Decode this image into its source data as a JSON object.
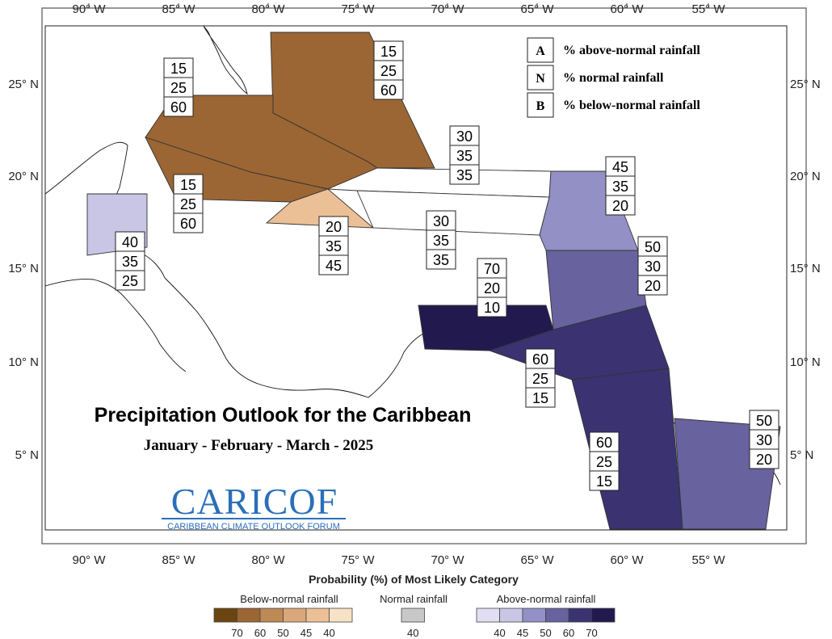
{
  "map": {
    "lon_ticks": [
      "90° W",
      "85° W",
      "80° W",
      "75° W",
      "70° W",
      "65° W",
      "60° W",
      "55° W"
    ],
    "lat_ticks": [
      "25° N",
      "20° N",
      "15° N",
      "10° N",
      "5° N"
    ]
  },
  "title": "Precipitation Outlook for the Caribbean",
  "subtitle": "January - February - March - 2025",
  "logo": {
    "name": "CARICOF",
    "tagline": "CARIBBEAN CLIMATE OUTLOOK FORUM"
  },
  "key": [
    {
      "letter": "A",
      "text": "% above-normal rainfall"
    },
    {
      "letter": "N",
      "text": "% normal rainfall"
    },
    {
      "letter": "B",
      "text": "% below-normal rainfall"
    }
  ],
  "regions": [
    {
      "id": "bahamas",
      "probabilities": [
        "15",
        "25",
        "60"
      ],
      "color": "#9b6634"
    },
    {
      "id": "cuba",
      "probabilities": [
        "15",
        "25",
        "60"
      ],
      "color": "#9b6634"
    },
    {
      "id": "cayman",
      "probabilities": [
        "15",
        "25",
        "60"
      ],
      "color": "#9b6634"
    },
    {
      "id": "jamaica",
      "probabilities": [
        "20",
        "35",
        "45"
      ],
      "color": "#ecc096"
    },
    {
      "id": "turks-hispaniola",
      "probabilities": [
        "30",
        "35",
        "35"
      ],
      "color": "#ffffff"
    },
    {
      "id": "hispaniola-south",
      "probabilities": [
        "30",
        "35",
        "35"
      ],
      "color": "#ffffff"
    },
    {
      "id": "belize",
      "probabilities": [
        "40",
        "35",
        "25"
      ],
      "color": "#c8c6e4"
    },
    {
      "id": "leeward",
      "probabilities": [
        "45",
        "35",
        "20"
      ],
      "color": "#9390c6"
    },
    {
      "id": "windward",
      "probabilities": [
        "50",
        "30",
        "20"
      ],
      "color": "#68629f"
    },
    {
      "id": "abc-islands",
      "probabilities": [
        "70",
        "20",
        "10"
      ],
      "color": "#221a4f"
    },
    {
      "id": "trinidad",
      "probabilities": [
        "60",
        "25",
        "15"
      ],
      "color": "#3b3271"
    },
    {
      "id": "guyana",
      "probabilities": [
        "60",
        "25",
        "15"
      ],
      "color": "#3b3271"
    },
    {
      "id": "suriname-guiana",
      "probabilities": [
        "50",
        "30",
        "20"
      ],
      "color": "#68629f"
    }
  ],
  "legend": {
    "title": "Probability (%) of Most Likely Category",
    "groups": [
      {
        "label": "Below-normal rainfall",
        "colors": [
          "#6b4510",
          "#9b6634",
          "#bd8a55",
          "#d9a87a",
          "#ecc096",
          "#f8e2c6"
        ],
        "ticks": [
          "70",
          "60",
          "50",
          "45",
          "40"
        ]
      },
      {
        "label": "Normal rainfall",
        "colors": [
          "#c8c8c8"
        ],
        "ticks": [
          "40"
        ]
      },
      {
        "label": "Above-normal rainfall",
        "colors": [
          "#e0def0",
          "#c8c6e4",
          "#9390c6",
          "#68629f",
          "#3b3271",
          "#221a4f"
        ],
        "ticks": [
          "40",
          "45",
          "50",
          "60",
          "70"
        ]
      }
    ]
  }
}
